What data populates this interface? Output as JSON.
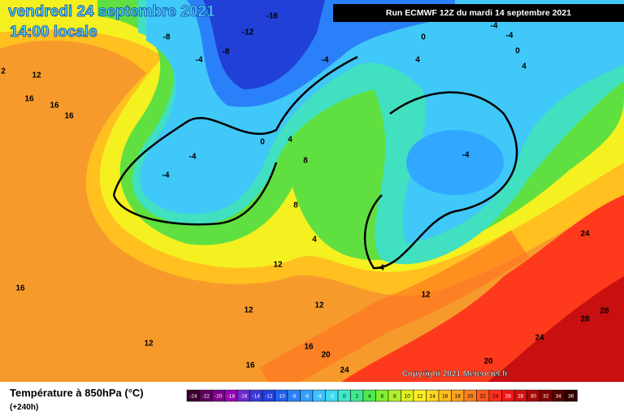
{
  "header": {
    "title": "vendredi 24 septembre 2021",
    "time": "14:00 locale",
    "run": "Run ECMWF 12Z du mardi 14 septembre 2021"
  },
  "footer": {
    "parameter": "Température à 850hPa (°C)",
    "lead": "(+240h)",
    "copyright": "Copyright 2021 Meteociel.fr"
  },
  "scale": {
    "labels": [
      "-24",
      "-22",
      "-20",
      "-18",
      "-16",
      "-14",
      "-12",
      "-10",
      "-8",
      "-6",
      "-4",
      "-2",
      "0",
      "2",
      "4",
      "6",
      "8",
      "10",
      "12",
      "14",
      "16",
      "18",
      "20",
      "22",
      "24",
      "26",
      "28",
      "30",
      "32",
      "34",
      "36"
    ],
    "colors": [
      "#3a0030",
      "#5a0058",
      "#7a0088",
      "#9a00b8",
      "#6a2ac8",
      "#3a3ad8",
      "#2040e0",
      "#1e60f0",
      "#2a80f8",
      "#30a0ff",
      "#3cc0ff",
      "#40d8f0",
      "#40e8c8",
      "#40e890",
      "#50e850",
      "#80f030",
      "#b0f030",
      "#e0f020",
      "#fff020",
      "#ffd820",
      "#ffbe20",
      "#ffa020",
      "#ff8020",
      "#ff5a20",
      "#ff3020",
      "#f01818",
      "#d01010",
      "#a80808",
      "#800000",
      "#580000",
      "#300000"
    ]
  },
  "contour_labels": [
    "-16",
    "-12",
    "-8",
    "-8",
    "-4",
    "-4",
    "-4",
    "-4",
    "0",
    "0",
    "4",
    "4",
    "12",
    "16",
    "16",
    "16",
    "2",
    "0",
    "4",
    "-4",
    "-4",
    "-4",
    "8",
    "8",
    "4",
    "12",
    "16",
    "12",
    "12",
    "16",
    "20",
    "16",
    "24",
    "12",
    "12",
    "24",
    "28",
    "28",
    "24",
    "20",
    "4"
  ]
}
